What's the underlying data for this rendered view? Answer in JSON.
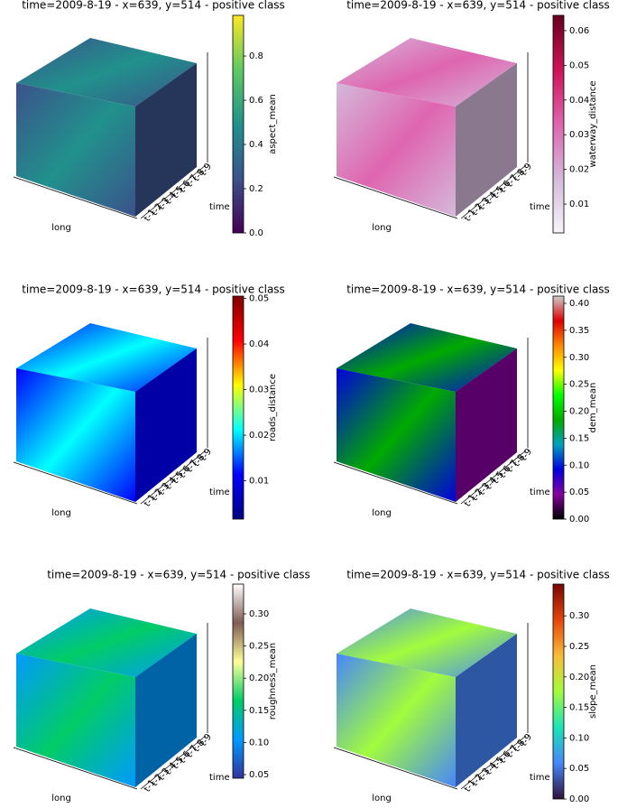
{
  "chart_data": [
    {
      "type": "voxel3d",
      "title": "time=2009-8-19 - x=639, y=514 - positive class",
      "xlabel": "long",
      "ylabel": "time",
      "time_ticks": [
        "t-1",
        "t-2",
        "t-3",
        "t-4",
        "t-5",
        "t-6",
        "t-7",
        "t-8",
        "t-9"
      ],
      "colorbar_label": "aspect_mean",
      "clim": [
        0,
        0.984
      ],
      "cticks": [
        {
          "value": 0,
          "label": "0.0"
        },
        0.2,
        0.4,
        0.6,
        0.8
      ],
      "colormap": [
        "#440154",
        "#3b528b",
        "#21918c",
        "#5ec962",
        "#fde725"
      ]
    },
    {
      "type": "voxel3d",
      "title": "time=2009-8-19 - x=639, y=514 - positive class",
      "xlabel": "long",
      "ylabel": "time",
      "time_ticks": [
        "t-1",
        "t-2",
        "t-3",
        "t-4",
        "t-5",
        "t-6",
        "t-7",
        "t-8",
        "t-9"
      ],
      "colorbar_label": "waterway_distance",
      "clim": [
        0.0017,
        0.0644
      ],
      "cticks": [
        0.01,
        0.02,
        0.03,
        0.04,
        0.05,
        0.06
      ],
      "colormap": [
        "#f7f4f9",
        "#d4b9da",
        "#df65b0",
        "#ce1256",
        "#67001f"
      ]
    },
    {
      "type": "voxel3d",
      "title": "time=2009-8-19 - x=639, y=514 - positive class",
      "xlabel": "long",
      "ylabel": "time",
      "time_ticks": [
        "t-1",
        "t-2",
        "t-3",
        "t-4",
        "t-5",
        "t-6",
        "t-7",
        "t-8",
        "t-9"
      ],
      "colorbar_label": "roads_distance",
      "clim": [
        0.0016,
        0.0505
      ],
      "cticks": [
        0.01,
        0.02,
        0.03,
        0.04,
        0.05
      ],
      "colormap": [
        "#00007f",
        "#0000ff",
        "#00ffff",
        "#ffff00",
        "#ff0000",
        "#7f0000"
      ]
    },
    {
      "type": "voxel3d",
      "title": "time=2009-8-19 - x=639, y=514 - positive class",
      "xlabel": "long",
      "ylabel": "time",
      "time_ticks": [
        "t-1",
        "t-2",
        "t-3",
        "t-4",
        "t-5",
        "t-6",
        "t-7",
        "t-8",
        "t-9"
      ],
      "colorbar_label": "dem_mean",
      "clim": [
        0,
        0.4134
      ],
      "cticks": [
        {
          "value": 0,
          "label": "0.00"
        },
        0.05,
        {
          "value": 0.1,
          "label": "0.10"
        },
        0.15,
        {
          "value": 0.2,
          "label": "0.20"
        },
        0.25,
        {
          "value": 0.3,
          "label": "0.30"
        },
        0.35,
        {
          "value": 0.4,
          "label": "0.40"
        }
      ],
      "colormap": [
        "#000000",
        "#8600a0",
        "#0000dd",
        "#00a0c0",
        "#00aa00",
        "#00ff00",
        "#ffff00",
        "#ff8800",
        "#dd0000",
        "#cccccc"
      ]
    },
    {
      "type": "voxel3d",
      "title": "time=2009-8-19 - x=639, y=514 - positive class",
      "xlabel": "long",
      "ylabel": "time",
      "time_ticks": [
        "t-1",
        "t-2",
        "t-3",
        "t-4",
        "t-5",
        "t-6",
        "t-7",
        "t-8",
        "t-9"
      ],
      "colorbar_label": "roughness_mean",
      "clim": [
        0.0444,
        0.3463
      ],
      "cticks": [
        0.05,
        {
          "value": 0.1,
          "label": "0.10"
        },
        0.15,
        {
          "value": 0.2,
          "label": "0.20"
        },
        0.25,
        {
          "value": 0.3,
          "label": "0.30"
        }
      ],
      "colormap": [
        "#333399",
        "#0199ff",
        "#01cc66",
        "#ffff99",
        "#805c54",
        "#ffffff"
      ]
    },
    {
      "type": "voxel3d",
      "title": "time=2009-8-19 - x=639, y=514 - positive class",
      "xlabel": "long",
      "ylabel": "time",
      "time_ticks": [
        "t-1",
        "t-2",
        "t-3",
        "t-4",
        "t-5",
        "t-6",
        "t-7",
        "t-8",
        "t-9"
      ],
      "colorbar_label": "slope_mean",
      "clim": [
        0,
        0.352
      ],
      "cticks": [
        {
          "value": 0,
          "label": "0.00"
        },
        0.05,
        {
          "value": 0.1,
          "label": "0.10"
        },
        0.15,
        {
          "value": 0.2,
          "label": "0.20"
        },
        0.25,
        {
          "value": 0.3,
          "label": "0.30"
        }
      ],
      "colormap": [
        "#30123b",
        "#4686fb",
        "#1ae4b6",
        "#a2fc3c",
        "#fabb39",
        "#e4460a",
        "#7a0403"
      ]
    }
  ]
}
